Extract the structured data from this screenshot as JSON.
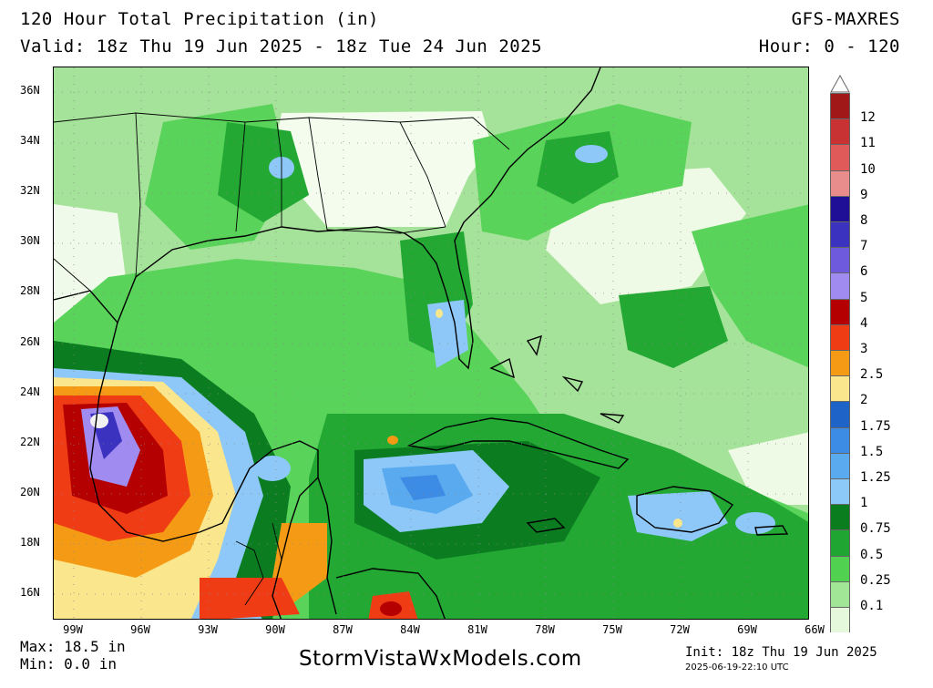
{
  "header": {
    "title": "120 Hour Total Precipitation (in)",
    "valid": "Valid: 18z Thu 19 Jun 2025 - 18z Tue 24 Jun 2025",
    "model": "GFS-MAXRES",
    "hours": "Hour: 0 - 120"
  },
  "axes": {
    "lat_labels": [
      "36N",
      "34N",
      "32N",
      "30N",
      "28N",
      "26N",
      "24N",
      "22N",
      "20N",
      "18N",
      "16N"
    ],
    "lon_labels": [
      "99W",
      "96W",
      "93W",
      "90W",
      "87W",
      "84W",
      "81W",
      "78W",
      "75W",
      "72W",
      "69W",
      "66W"
    ]
  },
  "legend": {
    "levels": [
      {
        "label": "12",
        "color": "#a01818"
      },
      {
        "label": "11",
        "color": "#c83232"
      },
      {
        "label": "10",
        "color": "#e05a5a"
      },
      {
        "label": "9",
        "color": "#e88c8c"
      },
      {
        "label": "8",
        "color": "#1e0f96"
      },
      {
        "label": "7",
        "color": "#3c32c0"
      },
      {
        "label": "6",
        "color": "#6e5adc"
      },
      {
        "label": "5",
        "color": "#a08cf0"
      },
      {
        "label": "4",
        "color": "#b40000"
      },
      {
        "label": "3",
        "color": "#f03c14"
      },
      {
        "label": "2.5",
        "color": "#f59a14"
      },
      {
        "label": "2",
        "color": "#fae68c"
      },
      {
        "label": "1.75",
        "color": "#1e64c8"
      },
      {
        "label": "1.5",
        "color": "#3c8ce6"
      },
      {
        "label": "1.25",
        "color": "#5aaaf0"
      },
      {
        "label": "1",
        "color": "#8cc8f8"
      },
      {
        "label": "0.75",
        "color": "#0a7d1e"
      },
      {
        "label": "0.5",
        "color": "#1ea532"
      },
      {
        "label": "0.25",
        "color": "#50d250"
      },
      {
        "label": "0.1",
        "color": "#a0e696"
      },
      {
        "label": "",
        "color": "#e6f8dc"
      }
    ]
  },
  "footer": {
    "max": "Max: 18.5 in",
    "min": "Min: 0.0 in",
    "site": "StormVistaWxModels.com",
    "init": "Init: 18z Thu 19 Jun 2025",
    "stamp": "2025-06-19-22:10 UTC"
  }
}
